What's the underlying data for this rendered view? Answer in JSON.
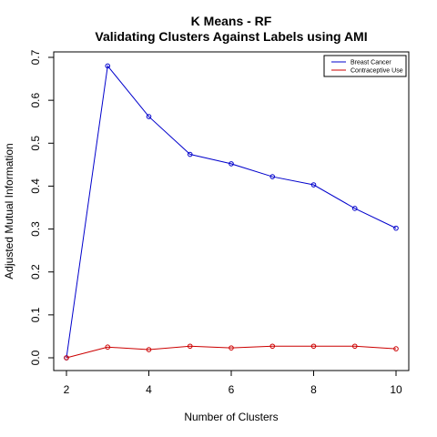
{
  "chart_data": {
    "type": "line",
    "title": "K Means - RF",
    "subtitle": "Validating Clusters Against Labels using AMI",
    "xlabel": "Number of Clusters",
    "ylabel": "Adjusted Mutual Information",
    "xlim": [
      2,
      10
    ],
    "ylim": [
      0,
      0.7
    ],
    "xticks": [
      "2",
      "4",
      "6",
      "8",
      "10"
    ],
    "yticks": [
      "0.0",
      "0.1",
      "0.2",
      "0.3",
      "0.4",
      "0.5",
      "0.6",
      "0.7"
    ],
    "grid": false,
    "legend_position": "top-right",
    "x": [
      2,
      3,
      4,
      5,
      6,
      7,
      8,
      9,
      10
    ],
    "series": [
      {
        "name": "Breast Cancer",
        "color": "#0000cc",
        "values": [
          0.0,
          0.68,
          0.562,
          0.474,
          0.452,
          0.422,
          0.403,
          0.348,
          0.302
        ]
      },
      {
        "name": "Contraceptive Use",
        "color": "#cc0000",
        "values": [
          0.0,
          0.025,
          0.019,
          0.027,
          0.023,
          0.027,
          0.027,
          0.027,
          0.021
        ]
      }
    ]
  }
}
